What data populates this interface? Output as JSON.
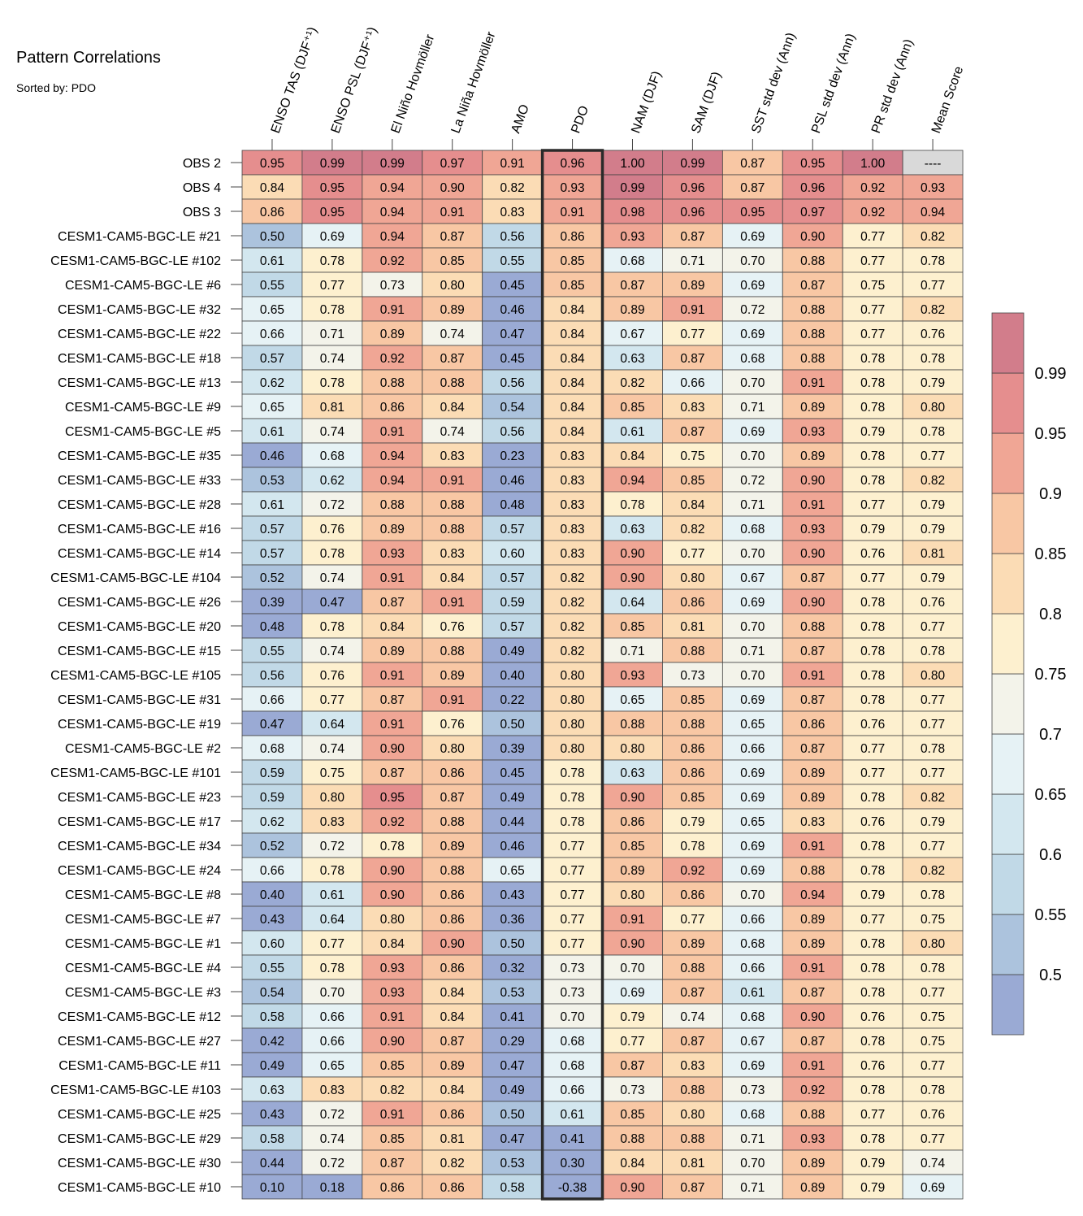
{
  "chart_data": {
    "type": "heatmap",
    "title": "Pattern Correlations",
    "subtitle": "Sorted by: PDO",
    "columns": [
      "ENSO TAS (DJF⁺¹)",
      "ENSO PSL (DJF⁺¹)",
      "El Niño Hovmöller",
      "La Niña Hovmöller",
      "AMO",
      "PDO",
      "NAM (DJF)",
      "SAM (DJF)",
      "SST std dev (Ann)",
      "PSL std dev (Ann)",
      "PR std dev (Ann)",
      "Mean Score"
    ],
    "highlight_column": "PDO",
    "missing_text": "----",
    "rows": [
      {
        "name": "OBS 2",
        "values": [
          "0.95",
          "0.99",
          "0.99",
          "0.97",
          "0.91",
          "0.96",
          "1.00",
          "0.99",
          "0.87",
          "0.95",
          "1.00",
          null
        ]
      },
      {
        "name": "OBS 4",
        "values": [
          "0.84",
          "0.95",
          "0.94",
          "0.90",
          "0.82",
          "0.93",
          "0.99",
          "0.96",
          "0.87",
          "0.96",
          "0.92",
          "0.93"
        ]
      },
      {
        "name": "OBS 3",
        "values": [
          "0.86",
          "0.95",
          "0.94",
          "0.91",
          "0.83",
          "0.91",
          "0.98",
          "0.96",
          "0.95",
          "0.97",
          "0.92",
          "0.94"
        ]
      },
      {
        "name": "CESM1-CAM5-BGC-LE #21",
        "values": [
          "0.50",
          "0.69",
          "0.94",
          "0.87",
          "0.56",
          "0.86",
          "0.93",
          "0.87",
          "0.69",
          "0.90",
          "0.77",
          "0.82"
        ]
      },
      {
        "name": "CESM1-CAM5-BGC-LE #102",
        "values": [
          "0.61",
          "0.78",
          "0.92",
          "0.85",
          "0.55",
          "0.85",
          "0.68",
          "0.71",
          "0.70",
          "0.88",
          "0.77",
          "0.78"
        ]
      },
      {
        "name": "CESM1-CAM5-BGC-LE #6",
        "values": [
          "0.55",
          "0.77",
          "0.73",
          "0.80",
          "0.45",
          "0.85",
          "0.87",
          "0.89",
          "0.69",
          "0.87",
          "0.75",
          "0.77"
        ]
      },
      {
        "name": "CESM1-CAM5-BGC-LE #32",
        "values": [
          "0.65",
          "0.78",
          "0.91",
          "0.89",
          "0.46",
          "0.84",
          "0.89",
          "0.91",
          "0.72",
          "0.88",
          "0.77",
          "0.82"
        ]
      },
      {
        "name": "CESM1-CAM5-BGC-LE #22",
        "values": [
          "0.66",
          "0.71",
          "0.89",
          "0.74",
          "0.47",
          "0.84",
          "0.67",
          "0.77",
          "0.69",
          "0.88",
          "0.77",
          "0.76"
        ]
      },
      {
        "name": "CESM1-CAM5-BGC-LE #18",
        "values": [
          "0.57",
          "0.74",
          "0.92",
          "0.87",
          "0.45",
          "0.84",
          "0.63",
          "0.87",
          "0.68",
          "0.88",
          "0.78",
          "0.78"
        ]
      },
      {
        "name": "CESM1-CAM5-BGC-LE #13",
        "values": [
          "0.62",
          "0.78",
          "0.88",
          "0.88",
          "0.56",
          "0.84",
          "0.82",
          "0.66",
          "0.70",
          "0.91",
          "0.78",
          "0.79"
        ]
      },
      {
        "name": "CESM1-CAM5-BGC-LE #9",
        "values": [
          "0.65",
          "0.81",
          "0.86",
          "0.84",
          "0.54",
          "0.84",
          "0.85",
          "0.83",
          "0.71",
          "0.89",
          "0.78",
          "0.80"
        ]
      },
      {
        "name": "CESM1-CAM5-BGC-LE #5",
        "values": [
          "0.61",
          "0.74",
          "0.91",
          "0.74",
          "0.56",
          "0.84",
          "0.61",
          "0.87",
          "0.69",
          "0.93",
          "0.79",
          "0.78"
        ]
      },
      {
        "name": "CESM1-CAM5-BGC-LE #35",
        "values": [
          "0.46",
          "0.68",
          "0.94",
          "0.83",
          "0.23",
          "0.83",
          "0.84",
          "0.75",
          "0.70",
          "0.89",
          "0.78",
          "0.77"
        ]
      },
      {
        "name": "CESM1-CAM5-BGC-LE #33",
        "values": [
          "0.53",
          "0.62",
          "0.94",
          "0.91",
          "0.46",
          "0.83",
          "0.94",
          "0.85",
          "0.72",
          "0.90",
          "0.78",
          "0.82"
        ]
      },
      {
        "name": "CESM1-CAM5-BGC-LE #28",
        "values": [
          "0.61",
          "0.72",
          "0.88",
          "0.88",
          "0.48",
          "0.83",
          "0.78",
          "0.84",
          "0.71",
          "0.91",
          "0.77",
          "0.79"
        ]
      },
      {
        "name": "CESM1-CAM5-BGC-LE #16",
        "values": [
          "0.57",
          "0.76",
          "0.89",
          "0.88",
          "0.57",
          "0.83",
          "0.63",
          "0.82",
          "0.68",
          "0.93",
          "0.79",
          "0.79"
        ]
      },
      {
        "name": "CESM1-CAM5-BGC-LE #14",
        "values": [
          "0.57",
          "0.78",
          "0.93",
          "0.83",
          "0.60",
          "0.83",
          "0.90",
          "0.77",
          "0.70",
          "0.90",
          "0.76",
          "0.81"
        ]
      },
      {
        "name": "CESM1-CAM5-BGC-LE #104",
        "values": [
          "0.52",
          "0.74",
          "0.91",
          "0.84",
          "0.57",
          "0.82",
          "0.90",
          "0.80",
          "0.67",
          "0.87",
          "0.77",
          "0.79"
        ]
      },
      {
        "name": "CESM1-CAM5-BGC-LE #26",
        "values": [
          "0.39",
          "0.47",
          "0.87",
          "0.91",
          "0.59",
          "0.82",
          "0.64",
          "0.86",
          "0.69",
          "0.90",
          "0.78",
          "0.76"
        ]
      },
      {
        "name": "CESM1-CAM5-BGC-LE #20",
        "values": [
          "0.48",
          "0.78",
          "0.84",
          "0.76",
          "0.57",
          "0.82",
          "0.85",
          "0.81",
          "0.70",
          "0.88",
          "0.78",
          "0.77"
        ]
      },
      {
        "name": "CESM1-CAM5-BGC-LE #15",
        "values": [
          "0.55",
          "0.74",
          "0.89",
          "0.88",
          "0.49",
          "0.82",
          "0.71",
          "0.88",
          "0.71",
          "0.87",
          "0.78",
          "0.78"
        ]
      },
      {
        "name": "CESM1-CAM5-BGC-LE #105",
        "values": [
          "0.56",
          "0.76",
          "0.91",
          "0.89",
          "0.40",
          "0.80",
          "0.93",
          "0.73",
          "0.70",
          "0.91",
          "0.78",
          "0.80"
        ]
      },
      {
        "name": "CESM1-CAM5-BGC-LE #31",
        "values": [
          "0.66",
          "0.77",
          "0.87",
          "0.91",
          "0.22",
          "0.80",
          "0.65",
          "0.85",
          "0.69",
          "0.87",
          "0.78",
          "0.77"
        ]
      },
      {
        "name": "CESM1-CAM5-BGC-LE #19",
        "values": [
          "0.47",
          "0.64",
          "0.91",
          "0.76",
          "0.50",
          "0.80",
          "0.88",
          "0.88",
          "0.65",
          "0.86",
          "0.76",
          "0.77"
        ]
      },
      {
        "name": "CESM1-CAM5-BGC-LE #2",
        "values": [
          "0.68",
          "0.74",
          "0.90",
          "0.80",
          "0.39",
          "0.80",
          "0.80",
          "0.86",
          "0.66",
          "0.87",
          "0.77",
          "0.78"
        ]
      },
      {
        "name": "CESM1-CAM5-BGC-LE #101",
        "values": [
          "0.59",
          "0.75",
          "0.87",
          "0.86",
          "0.45",
          "0.78",
          "0.63",
          "0.86",
          "0.69",
          "0.89",
          "0.77",
          "0.77"
        ]
      },
      {
        "name": "CESM1-CAM5-BGC-LE #23",
        "values": [
          "0.59",
          "0.80",
          "0.95",
          "0.87",
          "0.49",
          "0.78",
          "0.90",
          "0.85",
          "0.69",
          "0.89",
          "0.78",
          "0.82"
        ]
      },
      {
        "name": "CESM1-CAM5-BGC-LE #17",
        "values": [
          "0.62",
          "0.83",
          "0.92",
          "0.88",
          "0.44",
          "0.78",
          "0.86",
          "0.79",
          "0.65",
          "0.83",
          "0.76",
          "0.79"
        ]
      },
      {
        "name": "CESM1-CAM5-BGC-LE #34",
        "values": [
          "0.52",
          "0.72",
          "0.78",
          "0.89",
          "0.46",
          "0.77",
          "0.85",
          "0.78",
          "0.69",
          "0.91",
          "0.78",
          "0.77"
        ]
      },
      {
        "name": "CESM1-CAM5-BGC-LE #24",
        "values": [
          "0.66",
          "0.78",
          "0.90",
          "0.88",
          "0.65",
          "0.77",
          "0.89",
          "0.92",
          "0.69",
          "0.88",
          "0.78",
          "0.82"
        ]
      },
      {
        "name": "CESM1-CAM5-BGC-LE #8",
        "values": [
          "0.40",
          "0.61",
          "0.90",
          "0.86",
          "0.43",
          "0.77",
          "0.80",
          "0.86",
          "0.70",
          "0.94",
          "0.79",
          "0.78"
        ]
      },
      {
        "name": "CESM1-CAM5-BGC-LE #7",
        "values": [
          "0.43",
          "0.64",
          "0.80",
          "0.86",
          "0.36",
          "0.77",
          "0.91",
          "0.77",
          "0.66",
          "0.89",
          "0.77",
          "0.75"
        ]
      },
      {
        "name": "CESM1-CAM5-BGC-LE #1",
        "values": [
          "0.60",
          "0.77",
          "0.84",
          "0.90",
          "0.50",
          "0.77",
          "0.90",
          "0.89",
          "0.68",
          "0.89",
          "0.78",
          "0.80"
        ]
      },
      {
        "name": "CESM1-CAM5-BGC-LE #4",
        "values": [
          "0.55",
          "0.78",
          "0.93",
          "0.86",
          "0.32",
          "0.73",
          "0.70",
          "0.88",
          "0.66",
          "0.91",
          "0.78",
          "0.78"
        ]
      },
      {
        "name": "CESM1-CAM5-BGC-LE #3",
        "values": [
          "0.54",
          "0.70",
          "0.93",
          "0.84",
          "0.53",
          "0.73",
          "0.69",
          "0.87",
          "0.61",
          "0.87",
          "0.78",
          "0.77"
        ]
      },
      {
        "name": "CESM1-CAM5-BGC-LE #12",
        "values": [
          "0.58",
          "0.66",
          "0.91",
          "0.84",
          "0.41",
          "0.70",
          "0.79",
          "0.74",
          "0.68",
          "0.90",
          "0.76",
          "0.75"
        ]
      },
      {
        "name": "CESM1-CAM5-BGC-LE #27",
        "values": [
          "0.42",
          "0.66",
          "0.90",
          "0.87",
          "0.29",
          "0.68",
          "0.77",
          "0.87",
          "0.67",
          "0.87",
          "0.78",
          "0.75"
        ]
      },
      {
        "name": "CESM1-CAM5-BGC-LE #11",
        "values": [
          "0.49",
          "0.65",
          "0.85",
          "0.89",
          "0.47",
          "0.68",
          "0.87",
          "0.83",
          "0.69",
          "0.91",
          "0.76",
          "0.77"
        ]
      },
      {
        "name": "CESM1-CAM5-BGC-LE #103",
        "values": [
          "0.63",
          "0.83",
          "0.82",
          "0.84",
          "0.49",
          "0.66",
          "0.73",
          "0.88",
          "0.73",
          "0.92",
          "0.78",
          "0.78"
        ]
      },
      {
        "name": "CESM1-CAM5-BGC-LE #25",
        "values": [
          "0.43",
          "0.72",
          "0.91",
          "0.86",
          "0.50",
          "0.61",
          "0.85",
          "0.80",
          "0.68",
          "0.88",
          "0.77",
          "0.76"
        ]
      },
      {
        "name": "CESM1-CAM5-BGC-LE #29",
        "values": [
          "0.58",
          "0.74",
          "0.85",
          "0.81",
          "0.47",
          "0.41",
          "0.88",
          "0.88",
          "0.71",
          "0.93",
          "0.78",
          "0.77"
        ]
      },
      {
        "name": "CESM1-CAM5-BGC-LE #30",
        "values": [
          "0.44",
          "0.72",
          "0.87",
          "0.82",
          "0.53",
          "0.30",
          "0.84",
          "0.81",
          "0.70",
          "0.89",
          "0.79",
          "0.74"
        ]
      },
      {
        "name": "CESM1-CAM5-BGC-LE #10",
        "values": [
          "0.10",
          "0.18",
          "0.86",
          "0.86",
          "0.58",
          "-0.38",
          "0.90",
          "0.87",
          "0.71",
          "0.89",
          "0.79",
          "0.69"
        ]
      }
    ],
    "colorbar": {
      "levels": [
        0.5,
        0.55,
        0.6,
        0.65,
        0.7,
        0.75,
        0.8,
        0.85,
        0.9,
        0.95,
        0.99
      ],
      "labels": [
        "0.5",
        "0.55",
        "0.6",
        "0.65",
        "0.7",
        "0.75",
        "0.8",
        "0.85",
        "0.9",
        "0.95",
        "0.99"
      ],
      "colors": [
        "#9aaad4",
        "#acc3dd",
        "#c1d9e7",
        "#d3e7ef",
        "#e6f2f5",
        "#f3f3ea",
        "#fdf0cf",
        "#fbdcb5",
        "#f8c7a4",
        "#f0a695",
        "#e58e8e",
        "#d27d8b"
      ],
      "missing_color": "#d9d9d9"
    }
  }
}
